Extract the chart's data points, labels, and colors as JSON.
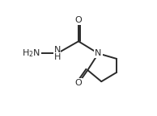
{
  "background_color": "#ffffff",
  "line_color": "#2a2a2a",
  "line_width": 1.4,
  "font_size_label": 8.0,
  "figsize": [
    1.94,
    1.44
  ],
  "dpi": 100,
  "xlim": [
    0,
    10
  ],
  "ylim": [
    0,
    7.5
  ]
}
